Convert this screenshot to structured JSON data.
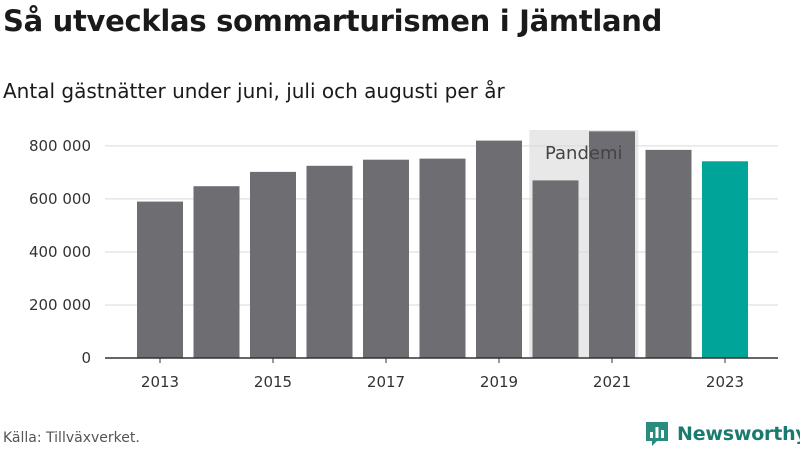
{
  "chart_data": {
    "type": "bar",
    "title": "Så utvecklas sommarturismen i Jämtland",
    "subtitle": "Antal gästnätter under juni, juli och augusti per år",
    "categories": [
      "2013",
      "2014",
      "2015",
      "2016",
      "2017",
      "2018",
      "2019",
      "2020",
      "2021",
      "2022",
      "2023"
    ],
    "values": [
      590000,
      648000,
      702000,
      725000,
      748000,
      752000,
      820000,
      670000,
      855000,
      785000,
      742000
    ],
    "highlight_category": "2023",
    "colors": {
      "bar": "#6e6d72",
      "highlight": "#00a499",
      "band": "#e8e8e8",
      "grid": "#d9d9d9",
      "axis": "#333333"
    },
    "ylim": [
      0,
      860000
    ],
    "yticks": [
      0,
      200000,
      400000,
      600000,
      800000
    ],
    "ytick_labels": [
      "0",
      "200 000",
      "400 000",
      "600 000",
      "800 000"
    ],
    "xtick_labels": [
      "2013",
      "2015",
      "2017",
      "2019",
      "2021",
      "2023"
    ],
    "grid": true,
    "annotation": {
      "text": "Pandemi",
      "span_categories": [
        "2020",
        "2021"
      ]
    },
    "xlabel": "",
    "ylabel": ""
  },
  "footer": {
    "source": "Källa: Tillväxverket.",
    "brand": "Newsworthy",
    "brand_icon": "bar-chart-speech-bubble-icon"
  }
}
